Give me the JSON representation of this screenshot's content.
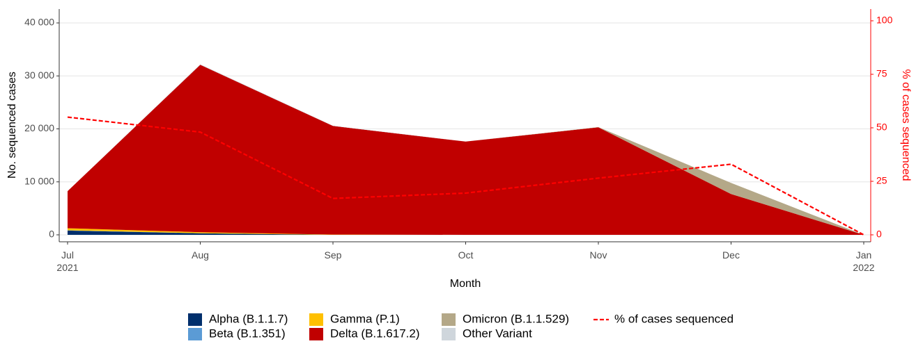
{
  "chart_data": {
    "type": "stacked-area",
    "categories": [
      "Jul\n2021",
      "Aug",
      "Sep",
      "Oct",
      "Nov",
      "Dec",
      "Jan\n2022"
    ],
    "x_label": "Month",
    "y_label": "No. sequenced cases",
    "y2_label": "% of cases sequenced",
    "ylim": [
      -1311,
      42623
    ],
    "yticks": [
      0,
      {
        "value": 10000,
        "label": "10 000"
      },
      {
        "value": 20000,
        "label": "20 000"
      },
      {
        "value": 30000,
        "label": "30 000"
      },
      {
        "value": 40000,
        "label": "40 000"
      }
    ],
    "y2lim": [
      -3.25,
      105.5
    ],
    "y2ticks": [
      0,
      25,
      50,
      75,
      100
    ],
    "grid": true,
    "legend": "bottom",
    "series": [
      {
        "name": "Alpha (B.1.1.7)",
        "color": "#002f6c",
        "values": [
          800,
          300,
          0,
          0,
          0,
          0,
          0
        ]
      },
      {
        "name": "Beta (B.1.351)",
        "color": "#5b9bd5",
        "values": [
          50,
          0,
          0,
          0,
          0,
          0,
          0
        ]
      },
      {
        "name": "Gamma (P.1)",
        "color": "#ffc000",
        "values": [
          400,
          200,
          50,
          0,
          0,
          0,
          0
        ]
      },
      {
        "name": "Delta (B.1.617.2)",
        "color": "#c00000",
        "values": [
          7000,
          31600,
          20500,
          17600,
          20300,
          7700,
          0
        ]
      },
      {
        "name": "Omicron (B.1.1.529)",
        "color": "#b4a888",
        "values": [
          0,
          0,
          0,
          0,
          50,
          2100,
          0
        ]
      },
      {
        "name": "Other Variant",
        "color": "#cfd6dc",
        "values": [
          0,
          100,
          50,
          0,
          0,
          0,
          0
        ]
      },
      {
        "name": "% of cases sequenced",
        "color": "#ff0000",
        "axis": "y2",
        "type": "line",
        "values": [
          55,
          48,
          17,
          19.5,
          26.5,
          33,
          0
        ]
      }
    ]
  }
}
